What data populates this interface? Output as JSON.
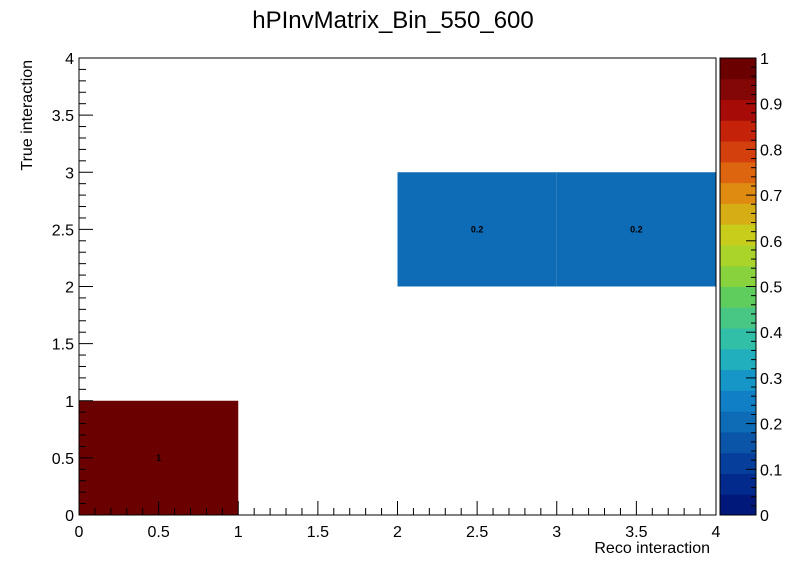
{
  "chart_data": {
    "type": "heatmap",
    "title": "hPInvMatrix_Bin_550_600",
    "xlabel": "Reco interaction",
    "ylabel": "True interaction",
    "xlim": [
      0,
      4
    ],
    "ylim": [
      0,
      4
    ],
    "zlim": [
      0,
      1
    ],
    "x_ticks": [
      "0",
      "0.5",
      "1",
      "1.5",
      "2",
      "2.5",
      "3",
      "3.5",
      "4"
    ],
    "y_ticks": [
      "0",
      "0.5",
      "1",
      "1.5",
      "2",
      "2.5",
      "3",
      "3.5",
      "4"
    ],
    "z_ticks": [
      "0",
      "0.1",
      "0.2",
      "0.3",
      "0.4",
      "0.5",
      "0.6",
      "0.7",
      "0.8",
      "0.9",
      "1"
    ],
    "cells": [
      {
        "x0": 0,
        "x1": 1,
        "y0": 0,
        "y1": 1,
        "value": 1,
        "label": "1"
      },
      {
        "x0": 2,
        "x1": 3,
        "y0": 2,
        "y1": 3,
        "value": 0.2,
        "label": "0.2"
      },
      {
        "x0": 3,
        "x1": 4,
        "y0": 2,
        "y1": 3,
        "value": 0.2,
        "label": "0.2"
      }
    ],
    "palette": [
      "#00187a",
      "#022a8c",
      "#063f9b",
      "#0a55a8",
      "#0e6bb6",
      "#117fc6",
      "#1695c7",
      "#21afbe",
      "#31bfa7",
      "#48c684",
      "#5fcc5e",
      "#88d23d",
      "#aad429",
      "#c8cd1c",
      "#d7ad16",
      "#df8b12",
      "#dd6510",
      "#d3400d",
      "#c42209",
      "#a60b08",
      "#820706",
      "#6b0000"
    ],
    "grid": false,
    "legend": "colorbar-right"
  }
}
